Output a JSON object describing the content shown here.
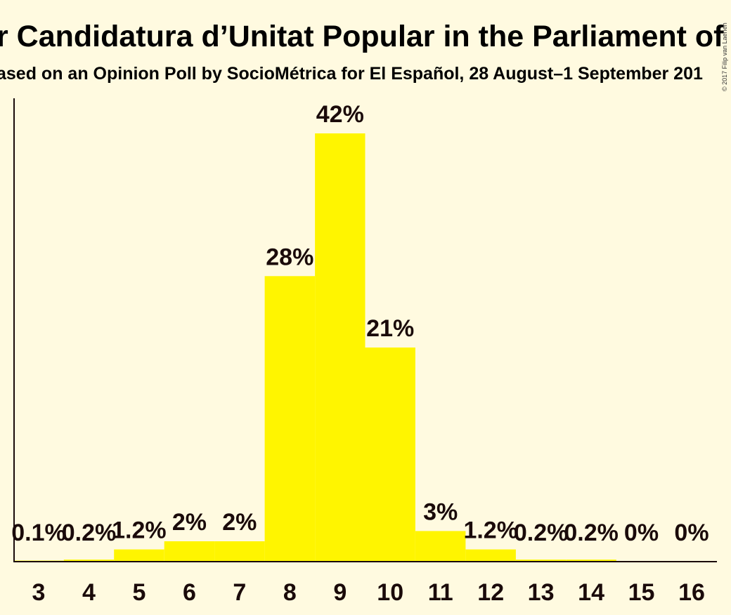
{
  "chart_data": {
    "type": "bar",
    "title": "r Candidatura d’Unitat Popular in the Parliament of C",
    "subtitle": "ased on an Opinion Poll by SocioMétrica for El Español, 28 August–1 September 201",
    "copyright": "© 2017 Filip van Laenen",
    "categories": [
      "3",
      "4",
      "5",
      "6",
      "7",
      "8",
      "9",
      "10",
      "11",
      "12",
      "13",
      "14",
      "15",
      "16"
    ],
    "values": [
      0.1,
      0.2,
      1.2,
      2,
      2,
      28,
      42,
      21,
      3,
      1.2,
      0.2,
      0.2,
      0,
      0
    ],
    "labels": [
      "0.1%",
      "0.2%",
      "1.2%",
      "2%",
      "2%",
      "28%",
      "42%",
      "21%",
      "3%",
      "1.2%",
      "0.2%",
      "0.2%",
      "0%",
      "0%"
    ],
    "bar_color": "#fff500",
    "background_color": "#fffae0",
    "ylim": [
      0,
      45
    ],
    "xlabel": "",
    "ylabel": ""
  }
}
